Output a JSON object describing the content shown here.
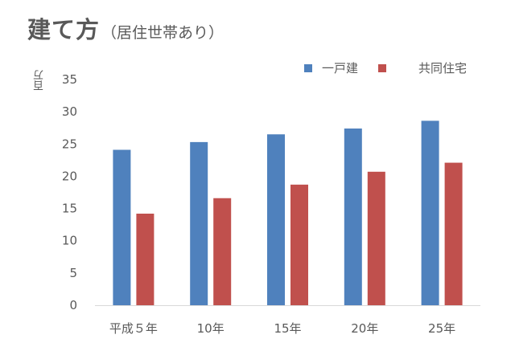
{
  "chart_data": {
    "type": "bar",
    "title": "建て方",
    "subtitle": "（居住世帯あり）",
    "ylabel": "百万",
    "xlabel": "",
    "ylim": [
      0,
      35
    ],
    "yticks": [
      0,
      5,
      10,
      15,
      20,
      25,
      30,
      35
    ],
    "categories": [
      "平成５年",
      "10年",
      "15年",
      "20年",
      "25年"
    ],
    "series": [
      {
        "name": "一戸建",
        "color": "#4F81BD",
        "values": [
          24.1,
          25.3,
          26.5,
          27.4,
          28.6
        ]
      },
      {
        "name": "共同住宅",
        "color": "#C0504D",
        "values": [
          14.2,
          16.6,
          18.7,
          20.7,
          22.1
        ]
      }
    ],
    "grid": false,
    "legend_position": "top-right"
  }
}
